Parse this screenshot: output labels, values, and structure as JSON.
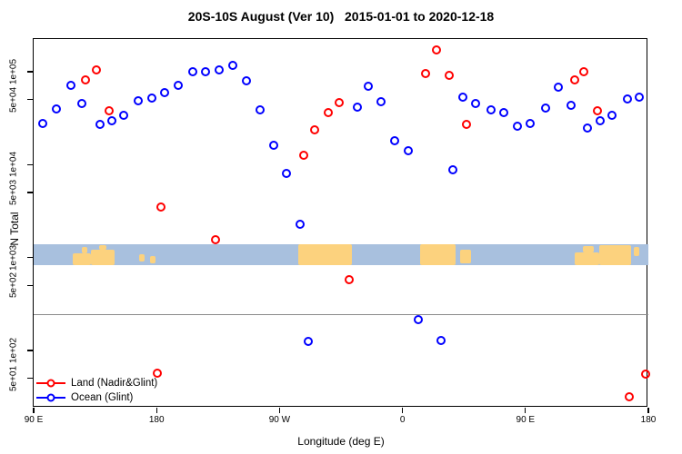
{
  "chart_data": {
    "type": "scatter",
    "title": "20S-10S August (Ver 10)   2015-01-01 to 2020-12-18",
    "xlabel": "Longitude (deg E)",
    "ylabel": "N Total",
    "x_axis": {
      "range": [
        90,
        540
      ],
      "ticks": [
        {
          "lon": 90,
          "label": "90 E"
        },
        {
          "lon": 180,
          "label": "180"
        },
        {
          "lon": 270,
          "label": "90 W"
        },
        {
          "lon": 360,
          "label": "0"
        },
        {
          "lon": 450,
          "label": "90 E"
        },
        {
          "lon": 540,
          "label": "180"
        }
      ]
    },
    "y_axis": {
      "scale": "log",
      "range": [
        24,
        220000
      ],
      "ticks": [
        {
          "value": 100000,
          "label": "1e+05"
        },
        {
          "value": 50000,
          "label": "5e+04"
        },
        {
          "value": 10000,
          "label": "1e+04"
        },
        {
          "value": 5000,
          "label": "5e+03"
        },
        {
          "value": 1000,
          "label": "1e+03"
        },
        {
          "value": 500,
          "label": "5e+02"
        },
        {
          "value": 100,
          "label": "1e+02"
        },
        {
          "value": 50,
          "label": "5e+01"
        }
      ]
    },
    "reference_line": {
      "value": 246,
      "color": "#8a8a8a"
    },
    "map_band": {
      "value_top": 1390,
      "value_bottom": 830,
      "ocean_color": "#a8c0de",
      "land_color": "#fcd27e",
      "land_patches": [
        {
          "lon0": 118.5,
          "lon1": 132,
          "t": 0.45,
          "b": 1
        },
        {
          "lon0": 125,
          "lon1": 129.5,
          "t": 0.12,
          "b": 0.45
        },
        {
          "lon0": 132,
          "lon1": 149,
          "t": 0.25,
          "b": 1
        },
        {
          "lon0": 138,
          "lon1": 143,
          "t": 0.05,
          "b": 0.25
        },
        {
          "lon0": 167.5,
          "lon1": 171,
          "t": 0.5,
          "b": 0.85
        },
        {
          "lon0": 175,
          "lon1": 179,
          "t": 0.55,
          "b": 0.9
        },
        {
          "lon0": 284,
          "lon1": 323,
          "t": 0,
          "b": 1
        },
        {
          "lon0": 373,
          "lon1": 399,
          "t": 0,
          "b": 1
        },
        {
          "lon0": 402,
          "lon1": 410.5,
          "t": 0.28,
          "b": 0.9
        },
        {
          "lon0": 486,
          "lon1": 504,
          "t": 0.38,
          "b": 1
        },
        {
          "lon0": 492,
          "lon1": 500,
          "t": 0.1,
          "b": 0.38
        },
        {
          "lon0": 504,
          "lon1": 527.5,
          "t": 0.04,
          "b": 1
        },
        {
          "lon0": 529.5,
          "lon1": 533.5,
          "t": 0.15,
          "b": 0.55
        }
      ]
    },
    "series": [
      {
        "name": "Land (Nadir&Glint)",
        "color": "#ff0000",
        "points": [
          [
            128,
            82000
          ],
          [
            136,
            105000
          ],
          [
            145,
            38000
          ],
          [
            180.5,
            57
          ],
          [
            183,
            3500
          ],
          [
            223,
            1560
          ],
          [
            288,
            12600
          ],
          [
            296,
            23700
          ],
          [
            306,
            36000
          ],
          [
            314,
            46600
          ],
          [
            321,
            580
          ],
          [
            377,
            96000
          ],
          [
            385,
            170000
          ],
          [
            394,
            92000
          ],
          [
            407,
            27000
          ],
          [
            486,
            82000
          ],
          [
            493,
            100000
          ],
          [
            503,
            38000
          ],
          [
            526,
            32
          ],
          [
            538,
            56
          ]
        ]
      },
      {
        "name": "Ocean (Glint)",
        "color": "#0000ff",
        "points": [
          [
            96.7,
            28000
          ],
          [
            106.6,
            40000
          ],
          [
            117.3,
            71000
          ],
          [
            125.3,
            45000
          ],
          [
            138.6,
            27000
          ],
          [
            147.2,
            30000
          ],
          [
            155.9,
            34000
          ],
          [
            166.5,
            49000
          ],
          [
            176.5,
            52000
          ],
          [
            185.9,
            60000
          ],
          [
            195.8,
            71000
          ],
          [
            206.5,
            100000
          ],
          [
            215.8,
            100000
          ],
          [
            225.8,
            105000
          ],
          [
            235.8,
            117000
          ],
          [
            245.8,
            80000
          ],
          [
            255.8,
            39000
          ],
          [
            265.8,
            16000
          ],
          [
            275.1,
            8000
          ],
          [
            285.1,
            2300
          ],
          [
            291.1,
            125
          ],
          [
            327,
            42000
          ],
          [
            335,
            70000
          ],
          [
            344.3,
            48000
          ],
          [
            354.3,
            18000
          ],
          [
            364.2,
            14000
          ],
          [
            371.6,
            215
          ],
          [
            388.2,
            128
          ],
          [
            396.9,
            8800
          ],
          [
            404.2,
            53000
          ],
          [
            413.5,
            45000
          ],
          [
            424.8,
            39000
          ],
          [
            434.1,
            36000
          ],
          [
            444.1,
            26000
          ],
          [
            453.4,
            28000
          ],
          [
            464.7,
            41000
          ],
          [
            474,
            68000
          ],
          [
            483.3,
            43500
          ],
          [
            495.3,
            25000
          ],
          [
            504.6,
            30000
          ],
          [
            513.3,
            34000
          ],
          [
            524.6,
            51000
          ],
          [
            533.2,
            53000
          ]
        ]
      }
    ],
    "legend": {
      "position": "bottom-left",
      "items": [
        "Land (Nadir&Glint)",
        "Ocean (Glint)"
      ]
    }
  }
}
